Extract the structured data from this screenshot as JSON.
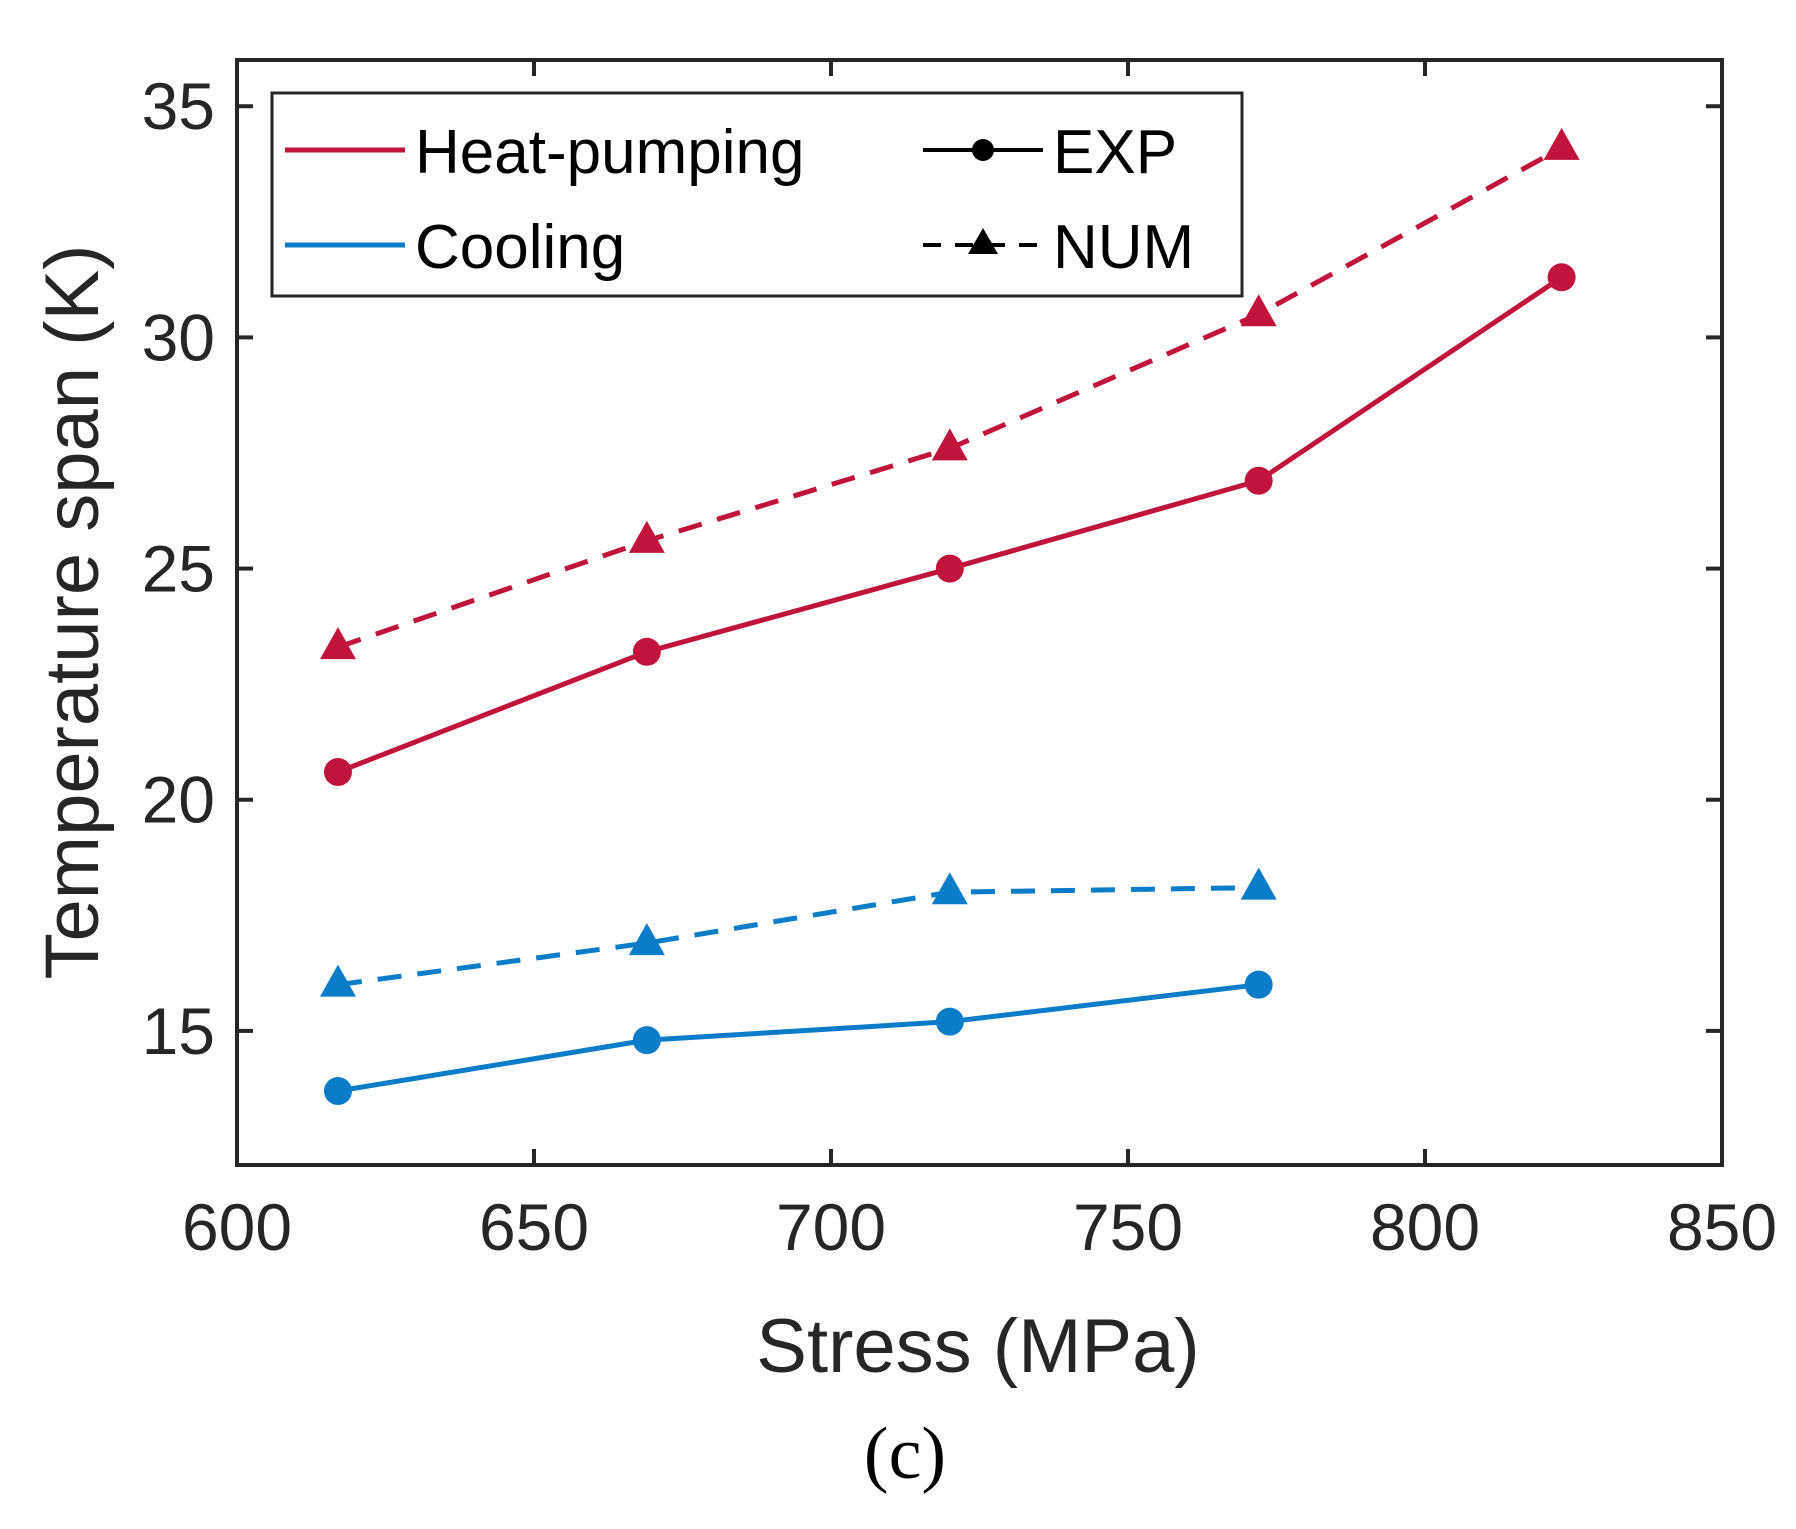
{
  "chart_data": {
    "type": "line",
    "title": "",
    "xlabel": "Stress (MPa)",
    "ylabel": "Temperature span (K)",
    "xlim": [
      600,
      850
    ],
    "ylim": [
      12.1,
      36
    ],
    "xticks": [
      600,
      650,
      700,
      750,
      800,
      850
    ],
    "yticks": [
      15,
      20,
      25,
      30,
      35
    ],
    "grid": false,
    "legend_position": "top-left",
    "legend": {
      "mode_entries": [
        {
          "label": "Heat-pumping",
          "color": "#C0143C"
        },
        {
          "label": "Cooling",
          "color": "#0A7CC8"
        }
      ],
      "method_entries": [
        {
          "label": "EXP",
          "style": "solid",
          "marker": "circle"
        },
        {
          "label": "NUM",
          "style": "dashed",
          "marker": "triangle"
        }
      ]
    },
    "series": [
      {
        "name": "Heat-pumping EXP",
        "color": "#C0143C",
        "style": "solid",
        "marker": "circle",
        "x": [
          617,
          669,
          720,
          772,
          823
        ],
        "y": [
          20.6,
          23.2,
          25.0,
          26.9,
          31.3
        ]
      },
      {
        "name": "Heat-pumping NUM",
        "color": "#C0143C",
        "style": "dashed",
        "marker": "triangle",
        "x": [
          617,
          669,
          720,
          772,
          823
        ],
        "y": [
          23.3,
          25.6,
          27.6,
          30.5,
          34.1
        ]
      },
      {
        "name": "Cooling EXP",
        "color": "#0A7CC8",
        "style": "solid",
        "marker": "circle",
        "x": [
          617,
          669,
          720,
          772
        ],
        "y": [
          13.7,
          14.8,
          15.2,
          16.0
        ]
      },
      {
        "name": "Cooling NUM",
        "color": "#0A7CC8",
        "style": "dashed",
        "marker": "triangle",
        "x": [
          617,
          669,
          720,
          772
        ],
        "y": [
          16.0,
          16.9,
          18.0,
          18.1
        ]
      }
    ]
  },
  "caption": "(c)"
}
